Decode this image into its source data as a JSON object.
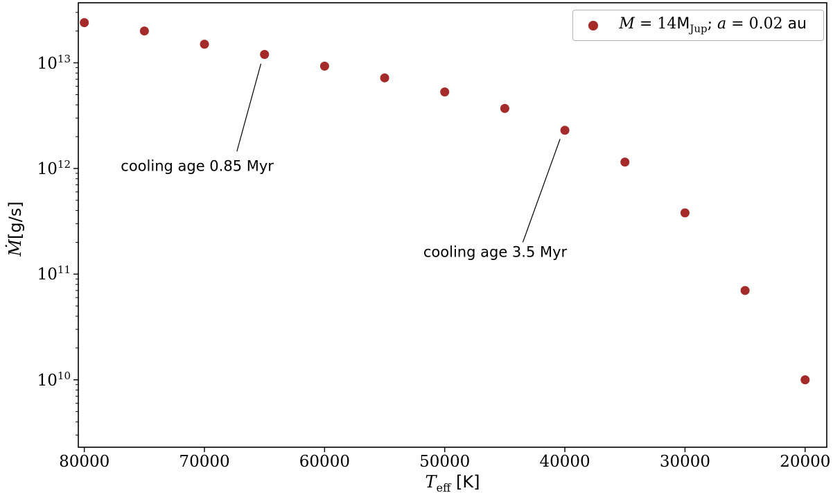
{
  "figure": {
    "background": "#ffffff",
    "spine_color": "#000000"
  },
  "legend": {
    "marker_color": "#A52A2A",
    "label_plain": "M = 14M_Jup; a = 0.02 au",
    "parts": {
      "var_m": "M",
      "eq1": " = 14",
      "mass_base": "M",
      "mass_sub": "Jup",
      "sep": "; ",
      "var_a": "a",
      "eq2": " = 0.02 ",
      "unit": "au"
    }
  },
  "axes": {
    "xlabel": {
      "base": "T",
      "sub": "eff",
      "unit": " [K]"
    },
    "ylabel": {
      "main": "Ṁ",
      "unit": "[g/s]"
    }
  },
  "chart_data": {
    "type": "scatter",
    "title": "",
    "xlabel": "T_eff [K]",
    "ylabel": "Mdot [g/s]",
    "grid": false,
    "legend_position": "upper right",
    "x_axis": {
      "reversed": true,
      "lim": [
        80500,
        18200
      ],
      "ticks": [
        80000,
        70000,
        60000,
        50000,
        40000,
        30000,
        20000
      ]
    },
    "y_axis": {
      "scale": "log",
      "lim": [
        2300000000.0,
        37000000000000.0
      ],
      "tick_exponents": [
        10,
        11,
        12,
        13
      ]
    },
    "series": [
      {
        "name": "M = 14M_Jup; a = 0.02 au",
        "marker": "circle",
        "color": "#A52A2A",
        "x": [
          80000,
          75000,
          70000,
          65000,
          60000,
          55000,
          50000,
          45000,
          40000,
          35000,
          30000,
          25000,
          20000
        ],
        "y": [
          24000000000000.0,
          20000000000000.0,
          15000000000000.0,
          12000000000000.0,
          9300000000000.0,
          7200000000000.0,
          5300000000000.0,
          3700000000000.0,
          2300000000000.0,
          1150000000000.0,
          380000000000.0,
          70000000000.0,
          10000000000.0
        ]
      }
    ],
    "annotations": [
      {
        "text": "cooling age 0.85 Myr",
        "text_T": 70600,
        "text_val": 1050000000000.0,
        "line_from_T": 67300,
        "line_from_val": 1450000000000.0,
        "line_to_T": 65300,
        "line_to_val": 9800000000000.0,
        "points_to": {
          "T": 65000,
          "val": 12000000000000.0
        }
      },
      {
        "text": "cooling age 3.5 Myr",
        "text_T": 45800,
        "text_val": 160000000000.0,
        "line_from_T": 43500,
        "line_from_val": 200000000000.0,
        "line_to_T": 40400,
        "line_to_val": 1900000000000.0,
        "points_to": {
          "T": 40000,
          "val": 2300000000000.0
        }
      }
    ]
  }
}
